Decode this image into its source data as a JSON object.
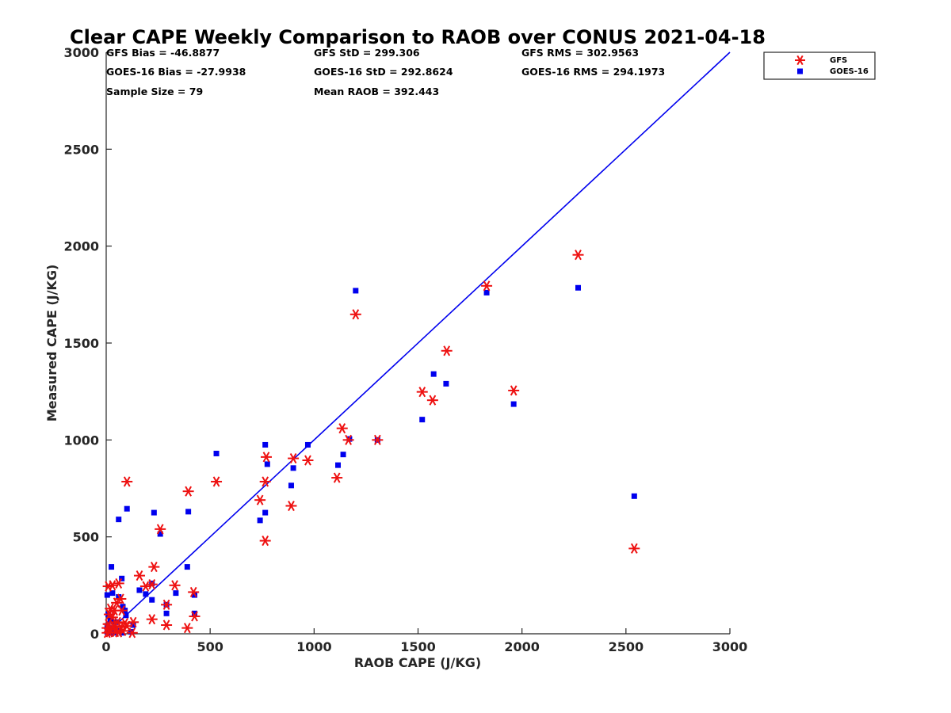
{
  "chart_data": {
    "type": "scatter",
    "title": "Clear CAPE Weekly Comparison to RAOB over CONUS 2021-04-18",
    "xlabel": "RAOB CAPE (J/KG)",
    "ylabel": "Measured CAPE (J/KG)",
    "xlim": [
      0,
      3000
    ],
    "ylim": [
      0,
      3000
    ],
    "xticks": [
      "0",
      "500",
      "1000",
      "1500",
      "2000",
      "2500",
      "3000"
    ],
    "yticks": [
      "0",
      "500",
      "1000",
      "1500",
      "2000",
      "2500",
      "3000"
    ],
    "grid": false,
    "legend_position": "top-right-outside",
    "reference_line": {
      "x": [
        0,
        3000
      ],
      "y": [
        0,
        3000
      ],
      "color": "#0000ee"
    },
    "stats": [
      [
        "GFS Bias = -46.8877",
        "GFS StD = 299.306",
        "GFS RMS = 302.9563"
      ],
      [
        "GOES-16 Bias = -27.9938",
        "GOES-16 StD = 292.8624",
        "GOES-16 RMS = 294.1973"
      ],
      [
        "Sample Size = 79",
        "Mean RAOB = 392.443",
        ""
      ]
    ],
    "series": [
      {
        "name": "GFS",
        "marker": "asterisk",
        "color": "#ee1111",
        "points": [
          [
            2270,
            1955
          ],
          [
            1830,
            1795
          ],
          [
            1200,
            1648
          ],
          [
            1638,
            1460
          ],
          [
            1960,
            1255
          ],
          [
            1520,
            1248
          ],
          [
            1570,
            1205
          ],
          [
            1135,
            1060
          ],
          [
            1165,
            1000
          ],
          [
            1305,
            1000
          ],
          [
            900,
            905
          ],
          [
            970,
            895
          ],
          [
            770,
            912
          ],
          [
            765,
            785
          ],
          [
            1110,
            805
          ],
          [
            740,
            690
          ],
          [
            890,
            660
          ],
          [
            530,
            785
          ],
          [
            395,
            735
          ],
          [
            100,
            785
          ],
          [
            765,
            480
          ],
          [
            2540,
            440
          ],
          [
            260,
            540
          ],
          [
            230,
            345
          ],
          [
            160,
            300
          ],
          [
            190,
            245
          ],
          [
            220,
            255
          ],
          [
            330,
            250
          ],
          [
            420,
            215
          ],
          [
            290,
            150
          ],
          [
            220,
            75
          ],
          [
            290,
            45
          ],
          [
            390,
            30
          ],
          [
            425,
            90
          ],
          [
            130,
            60
          ],
          [
            125,
            5
          ],
          [
            10,
            245
          ],
          [
            30,
            250
          ],
          [
            60,
            260
          ],
          [
            70,
            180
          ],
          [
            50,
            160
          ],
          [
            20,
            130
          ],
          [
            40,
            120
          ],
          [
            75,
            120
          ],
          [
            15,
            100
          ],
          [
            30,
            85
          ],
          [
            55,
            60
          ],
          [
            10,
            50
          ],
          [
            35,
            40
          ],
          [
            70,
            35
          ],
          [
            90,
            55
          ],
          [
            20,
            20
          ],
          [
            45,
            10
          ],
          [
            5,
            5
          ],
          [
            15,
            8
          ],
          [
            60,
            8
          ],
          [
            80,
            15
          ],
          [
            5,
            30
          ],
          [
            100,
            40
          ]
        ]
      },
      {
        "name": "GOES-16",
        "marker": "square",
        "color": "#0000ee",
        "points": [
          [
            2270,
            1785
          ],
          [
            1830,
            1760
          ],
          [
            1200,
            1770
          ],
          [
            1575,
            1340
          ],
          [
            1635,
            1290
          ],
          [
            1960,
            1185
          ],
          [
            1520,
            1105
          ],
          [
            1170,
            1005
          ],
          [
            1305,
            1000
          ],
          [
            1140,
            925
          ],
          [
            1115,
            870
          ],
          [
            970,
            975
          ],
          [
            765,
            975
          ],
          [
            775,
            875
          ],
          [
            900,
            855
          ],
          [
            890,
            765
          ],
          [
            765,
            625
          ],
          [
            740,
            585
          ],
          [
            530,
            930
          ],
          [
            2540,
            710
          ],
          [
            395,
            630
          ],
          [
            230,
            625
          ],
          [
            100,
            645
          ],
          [
            60,
            590
          ],
          [
            260,
            515
          ],
          [
            25,
            345
          ],
          [
            390,
            345
          ],
          [
            75,
            285
          ],
          [
            220,
            260
          ],
          [
            160,
            225
          ],
          [
            190,
            205
          ],
          [
            335,
            210
          ],
          [
            425,
            200
          ],
          [
            220,
            175
          ],
          [
            290,
            150
          ],
          [
            290,
            105
          ],
          [
            425,
            105
          ],
          [
            130,
            45
          ],
          [
            5,
            200
          ],
          [
            30,
            210
          ],
          [
            60,
            190
          ],
          [
            80,
            140
          ],
          [
            90,
            120
          ],
          [
            95,
            95
          ],
          [
            10,
            100
          ],
          [
            20,
            70
          ],
          [
            45,
            60
          ],
          [
            5,
            40
          ],
          [
            15,
            30
          ],
          [
            40,
            25
          ],
          [
            60,
            15
          ],
          [
            75,
            5
          ],
          [
            5,
            10
          ],
          [
            20,
            5
          ],
          [
            35,
            5
          ],
          [
            10,
            25
          ],
          [
            120,
            10
          ]
        ]
      }
    ]
  }
}
